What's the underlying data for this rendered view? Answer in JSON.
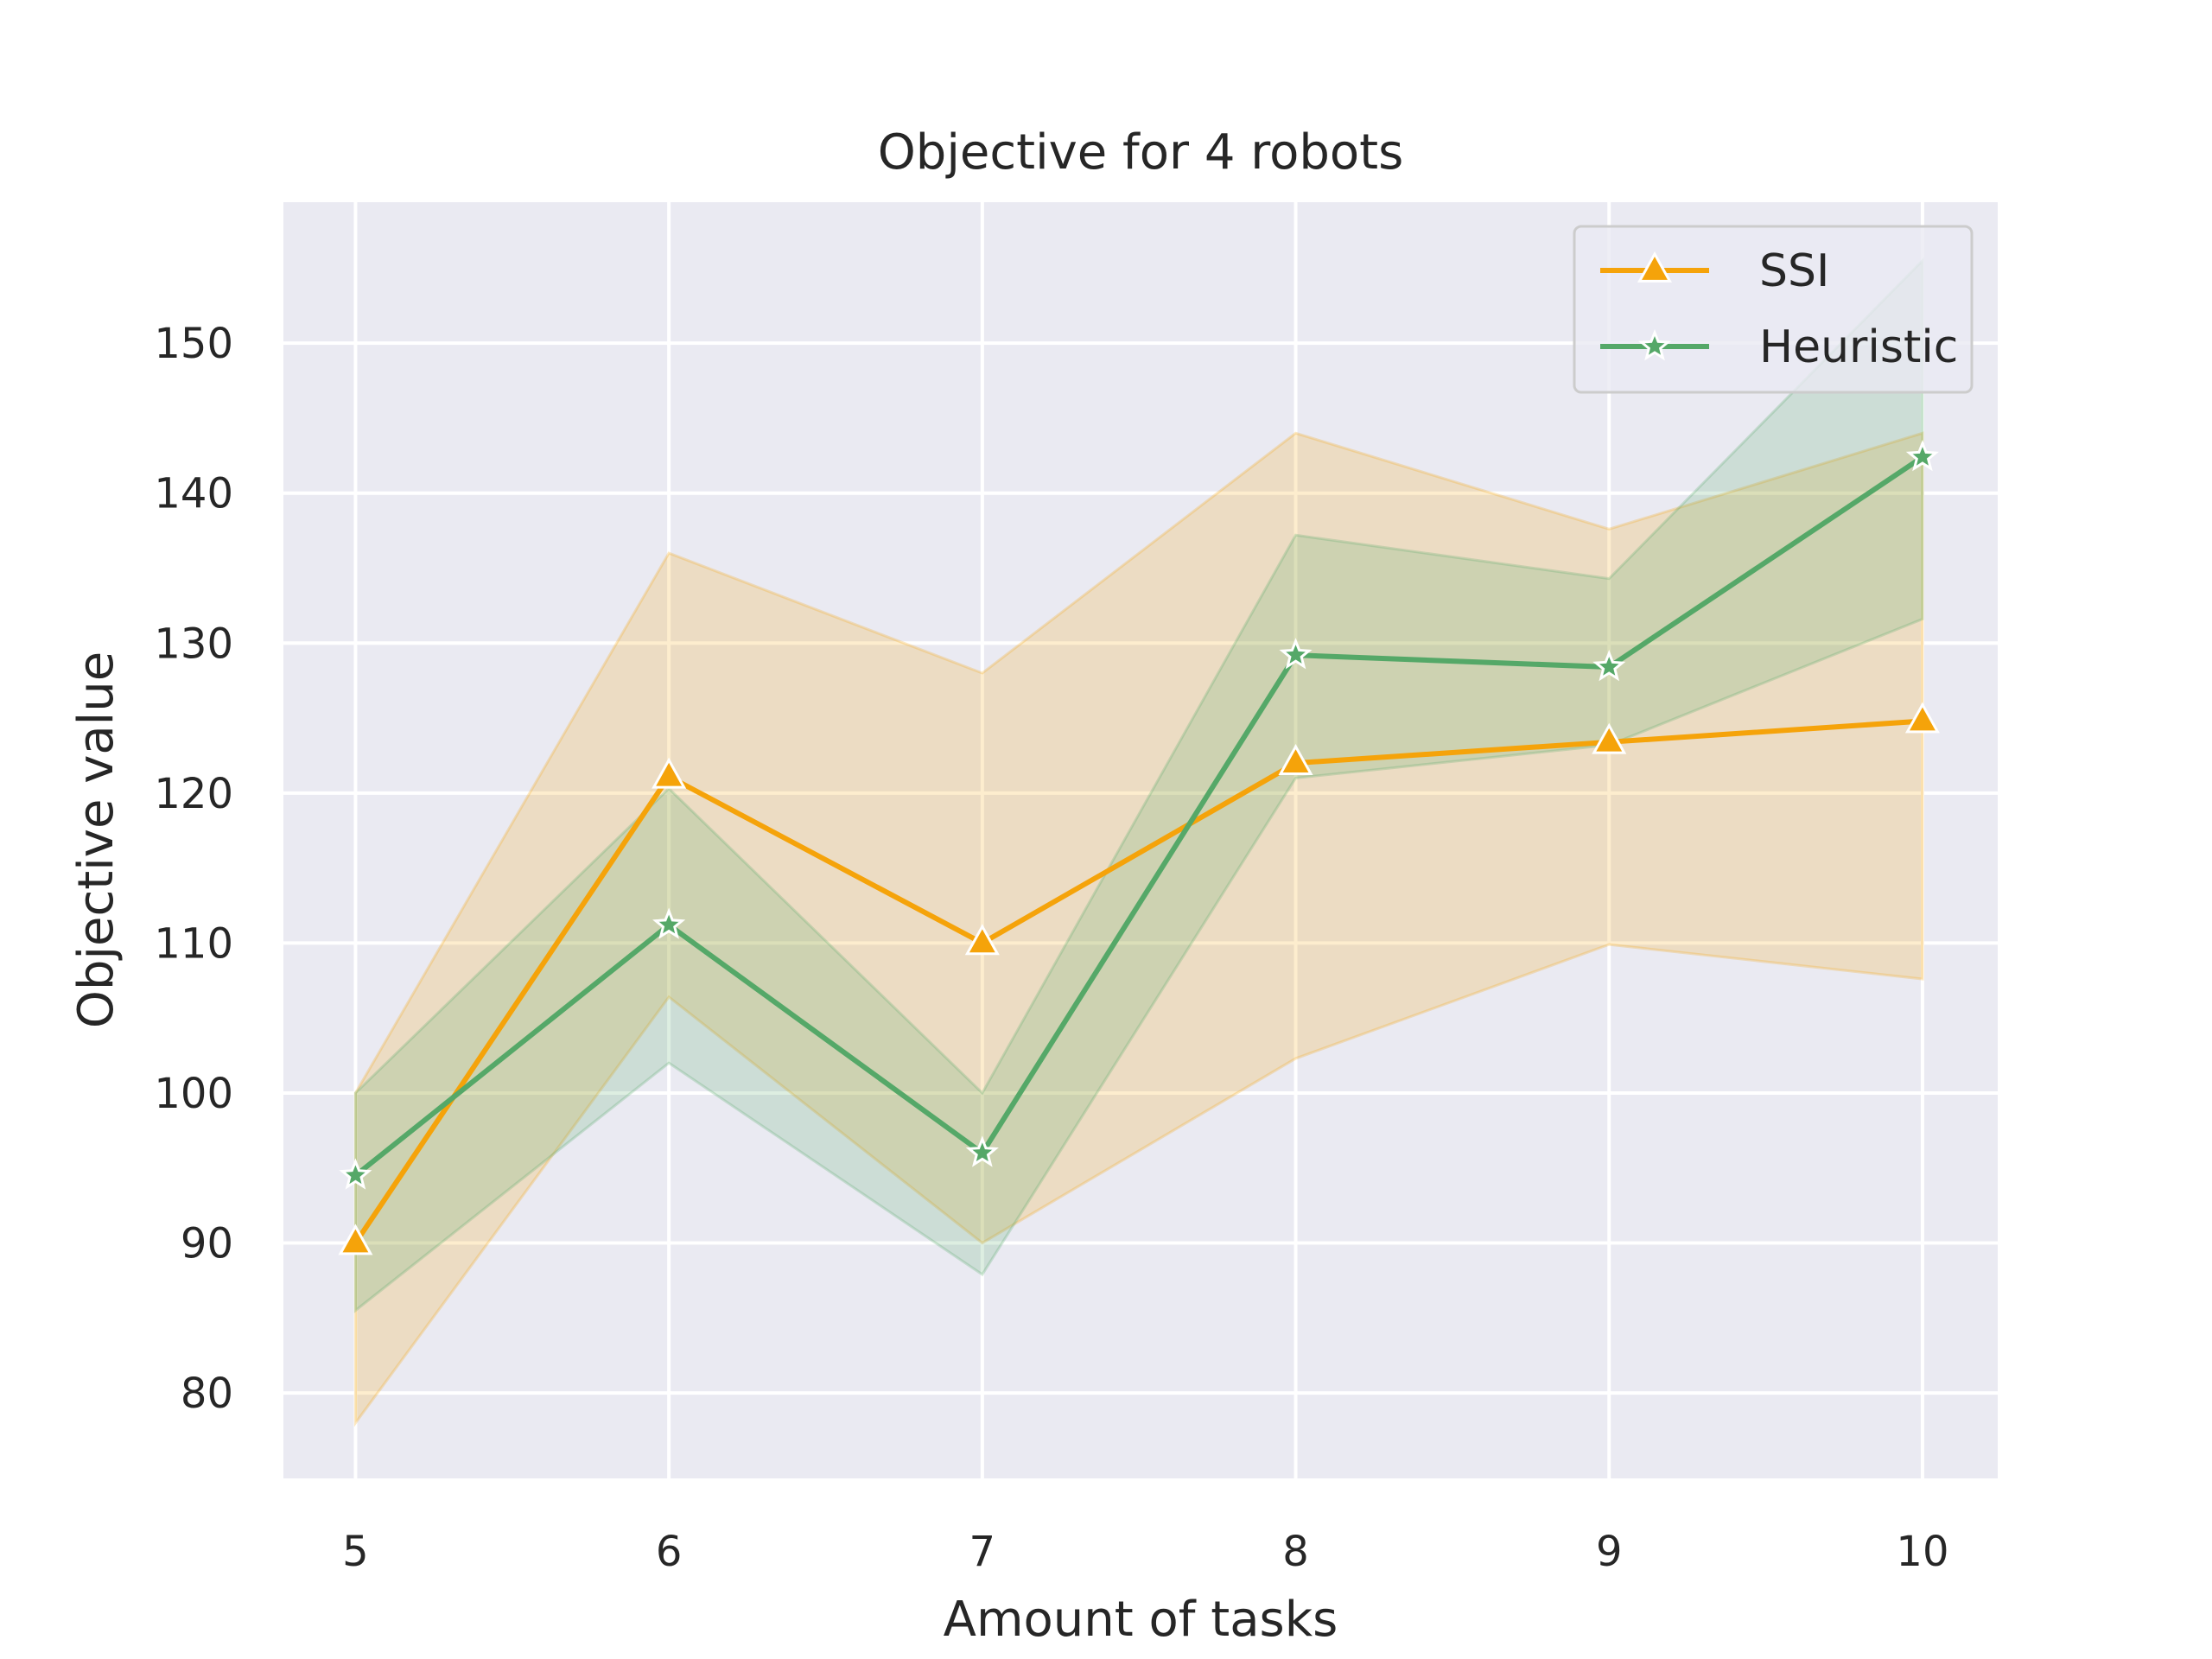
{
  "chart_data": {
    "type": "line",
    "title": "Objective for 4 robots",
    "xlabel": "Amount of tasks",
    "ylabel": "Objective value",
    "x": [
      5,
      6,
      7,
      8,
      9,
      10
    ],
    "xlim": [
      4.77,
      10.24
    ],
    "ylim": [
      74.3,
      159.4
    ],
    "xticks": [
      5,
      6,
      7,
      8,
      9,
      10
    ],
    "yticks": [
      80,
      90,
      100,
      110,
      120,
      130,
      140,
      150
    ],
    "grid": true,
    "legend_position": "top-right",
    "series": [
      {
        "name": "SSI",
        "color": "#f5a30a",
        "marker": "triangle",
        "values": [
          90,
          121.1,
          110,
          122,
          123.4,
          124.8
        ],
        "lower": [
          78,
          106.4,
          90,
          102.3,
          109.9,
          107.6
        ],
        "upper": [
          100,
          136,
          128,
          144,
          137.6,
          144
        ]
      },
      {
        "name": "Heuristic",
        "color": "#55a868",
        "marker": "star",
        "values": [
          94.5,
          111.2,
          96,
          129.2,
          128.4,
          142.4
        ],
        "lower": [
          85.5,
          102,
          87.9,
          121,
          123.2,
          131.6
        ],
        "upper": [
          100,
          120.3,
          100,
          137.2,
          134.3,
          155.5
        ]
      }
    ]
  }
}
